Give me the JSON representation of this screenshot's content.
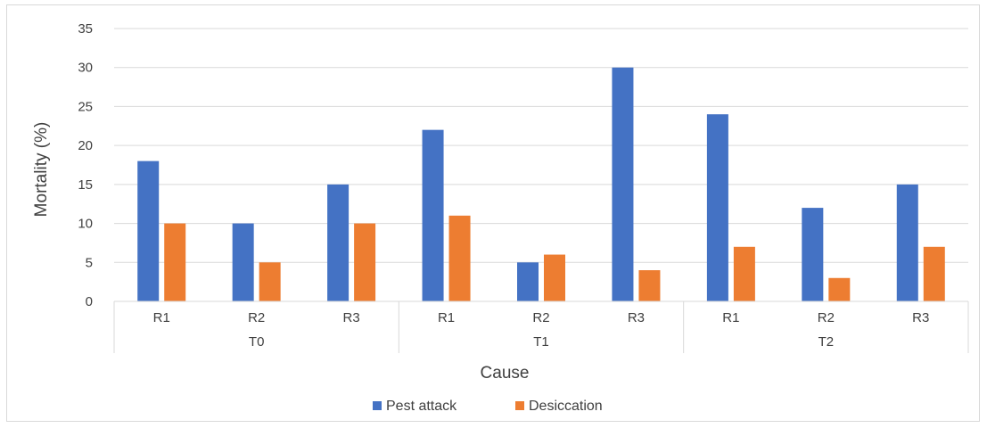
{
  "chart_data": {
    "type": "bar",
    "xlabel": "Cause",
    "ylabel": "Mortality (%)",
    "ylim": [
      0,
      35
    ],
    "yticks": [
      "0",
      "5",
      "10",
      "15",
      "20",
      "25",
      "30",
      "35"
    ],
    "grid": true,
    "legend_position": "bottom",
    "groups": [
      {
        "label": "T0",
        "categories": [
          "R1",
          "R2",
          "R3"
        ]
      },
      {
        "label": "T1",
        "categories": [
          "R1",
          "R2",
          "R3"
        ]
      },
      {
        "label": "T2",
        "categories": [
          "R1",
          "R2",
          "R3"
        ]
      }
    ],
    "series": [
      {
        "name": "Pest attack",
        "color": "#4472c4",
        "values": [
          18,
          10,
          15,
          22,
          5,
          30,
          24,
          12,
          15
        ]
      },
      {
        "name": "Desiccation",
        "color": "#ed7d31",
        "values": [
          10,
          5,
          10,
          11,
          6,
          4,
          7,
          3,
          7
        ]
      }
    ]
  }
}
